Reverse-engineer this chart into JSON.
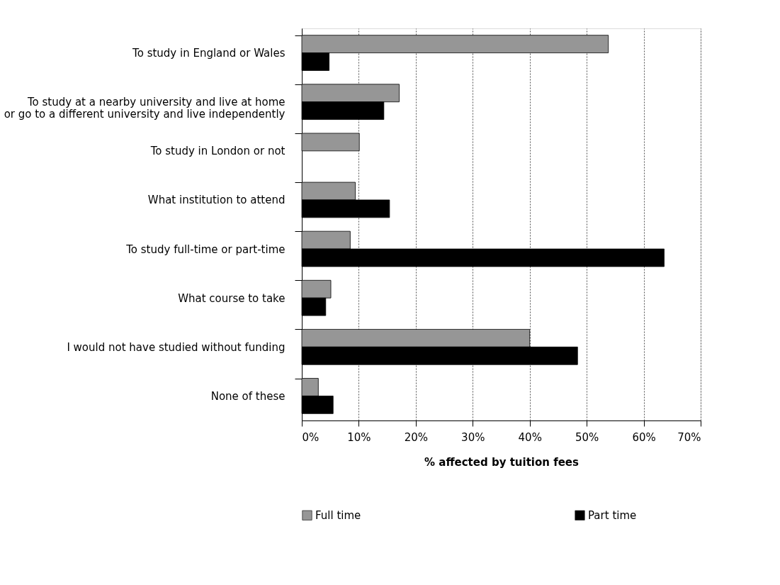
{
  "chart_data": {
    "type": "bar",
    "orientation": "horizontal",
    "xlabel": "% affected by tuition fees",
    "categories": [
      "To study in England or Wales",
      "To study at a nearby university and live at home\nor go to a different university and live independently",
      "To study in London or not",
      "What institution to attend",
      "To study full-time or part-time",
      "What course to take",
      "I would not have studied without funding",
      "None of these"
    ],
    "series": [
      {
        "name": "Full time",
        "color": "#969696",
        "values": [
          53.8,
          17.1,
          10.1,
          9.4,
          8.5,
          5.1,
          40.0,
          2.9
        ]
      },
      {
        "name": "Part time",
        "color": "#000000",
        "values": [
          4.8,
          14.4,
          null,
          15.4,
          63.6,
          4.2,
          48.4,
          5.5
        ]
      }
    ],
    "xlim": [
      0,
      70
    ],
    "xticks": [
      {
        "value": 0,
        "label": "0%"
      },
      {
        "value": 10,
        "label": "10%"
      },
      {
        "value": 20,
        "label": "20%"
      },
      {
        "value": 30,
        "label": "30%"
      },
      {
        "value": 40,
        "label": "40%"
      },
      {
        "value": 50,
        "label": "50%"
      },
      {
        "value": 60,
        "label": "60%"
      },
      {
        "value": 70,
        "label": "70%"
      }
    ],
    "grid": "x",
    "legend": "bottom"
  }
}
